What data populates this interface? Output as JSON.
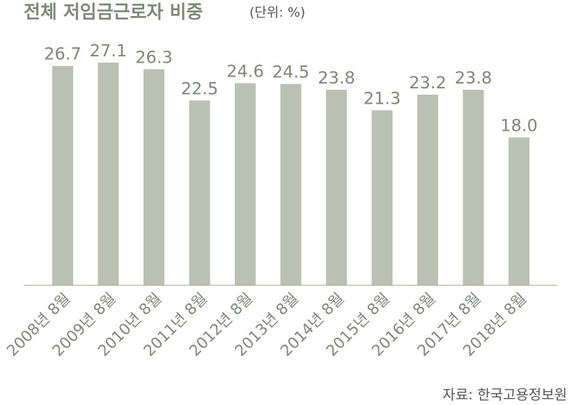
{
  "chart_data": {
    "type": "bar",
    "title": "전체 저임금근로자 비중",
    "unit": "(단위: %)",
    "categories": [
      "2008년 8월",
      "2009년 8월",
      "2010년 8월",
      "2011년 8월",
      "2012년 8월",
      "2013년 8월",
      "2014년 8월",
      "2015년 8월",
      "2016년 8월",
      "2017년 8월",
      "2018년 8월"
    ],
    "values": [
      26.7,
      27.1,
      26.3,
      22.5,
      24.6,
      24.5,
      23.8,
      21.3,
      23.2,
      23.8,
      18.0
    ],
    "value_labels": [
      "26.7",
      "27.1",
      "26.3",
      "22.5",
      "24.6",
      "24.5",
      "23.8",
      "21.3",
      "23.2",
      "23.8",
      "18.0"
    ],
    "ylim": [
      0,
      27.1
    ],
    "grid": false,
    "source": "자료: 한국고용정보원",
    "colors": {
      "bar": "#b9c2b2",
      "text": "#7c8a76"
    }
  }
}
